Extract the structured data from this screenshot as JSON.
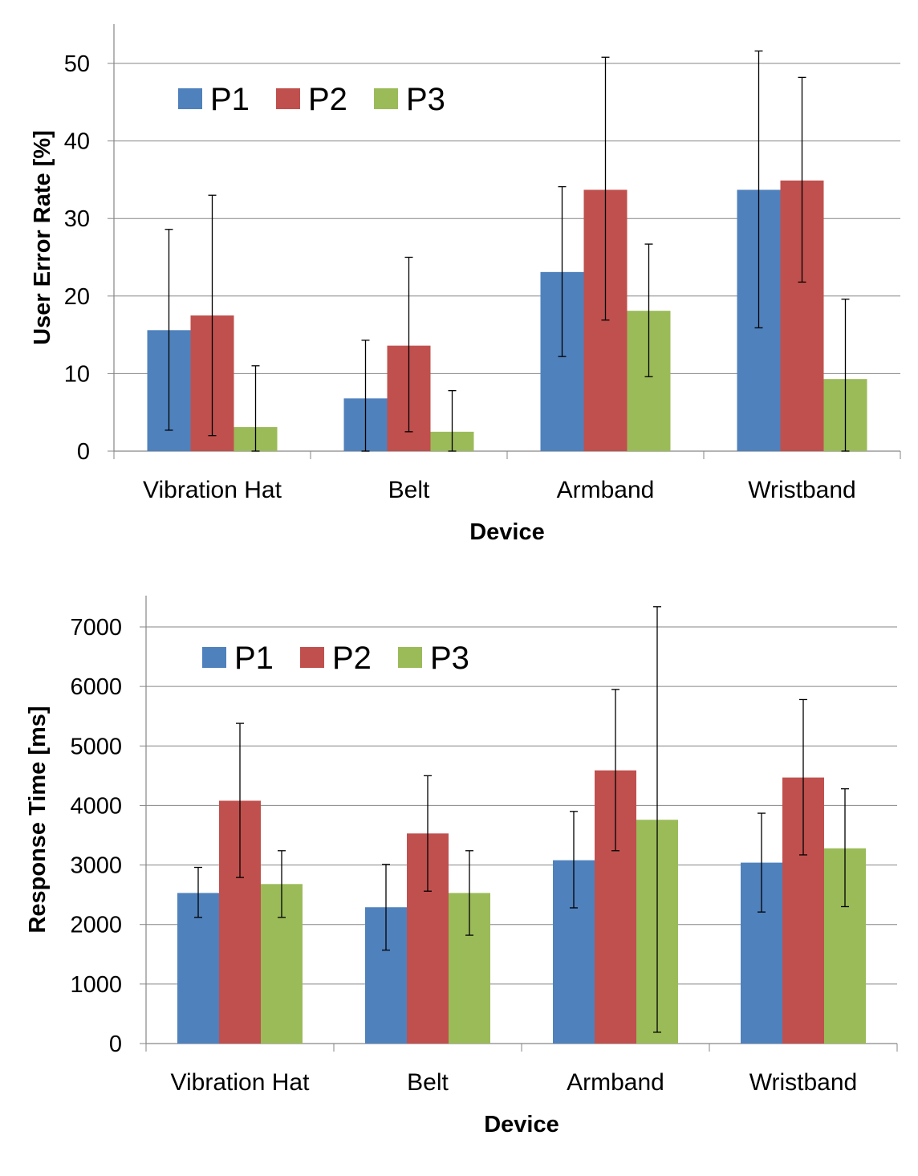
{
  "colors": {
    "P1": "#4f81bd",
    "P2": "#c0504d",
    "P3": "#9bbb59"
  },
  "chart_data": [
    {
      "type": "bar",
      "title": "",
      "xlabel": "Device",
      "ylabel": "User Error Rate [%]",
      "ylim": [
        0,
        50
      ],
      "yticks": [
        "0",
        "10",
        "20",
        "30",
        "40",
        "50"
      ],
      "categories": [
        "Vibration Hat",
        "Belt",
        "Armband",
        "Wristband"
      ],
      "legend_position": "top-left",
      "grid": true,
      "series": [
        {
          "name": "P1",
          "values": [
            15.6,
            6.8,
            23.1,
            33.7
          ],
          "err_low": [
            2.7,
            0,
            12.2,
            15.9
          ],
          "err_high": [
            28.6,
            14.3,
            34.1,
            51.6
          ]
        },
        {
          "name": "P2",
          "values": [
            17.5,
            13.6,
            33.7,
            34.9
          ],
          "err_low": [
            2.0,
            2.5,
            16.9,
            21.8
          ],
          "err_high": [
            33.0,
            25.0,
            50.8,
            48.2
          ]
        },
        {
          "name": "P3",
          "values": [
            3.1,
            2.5,
            18.1,
            9.3
          ],
          "err_low": [
            0,
            0,
            9.6,
            0
          ],
          "err_high": [
            11.0,
            7.8,
            26.7,
            19.6
          ]
        }
      ]
    },
    {
      "type": "bar",
      "title": "",
      "xlabel": "Device",
      "ylabel": "Response Time [ms]",
      "ylim": [
        0,
        7000
      ],
      "yticks": [
        "0",
        "1000",
        "2000",
        "3000",
        "4000",
        "5000",
        "6000",
        "7000"
      ],
      "categories": [
        "Vibration Hat",
        "Belt",
        "Armband",
        "Wristband"
      ],
      "legend_position": "top-left",
      "grid": true,
      "series": [
        {
          "name": "P1",
          "values": [
            2530,
            2290,
            3080,
            3040
          ],
          "err_low": [
            2120,
            1570,
            2280,
            2210
          ],
          "err_high": [
            2960,
            3010,
            3900,
            3870
          ]
        },
        {
          "name": "P2",
          "values": [
            4080,
            3530,
            4590,
            4470
          ],
          "err_low": [
            2790,
            2560,
            3240,
            3170
          ],
          "err_high": [
            5380,
            4500,
            5950,
            5780
          ]
        },
        {
          "name": "P3",
          "values": [
            2680,
            2530,
            3760,
            3280
          ],
          "err_low": [
            2120,
            1820,
            190,
            2300
          ],
          "err_high": [
            3240,
            3240,
            7340,
            4280
          ]
        }
      ]
    }
  ]
}
